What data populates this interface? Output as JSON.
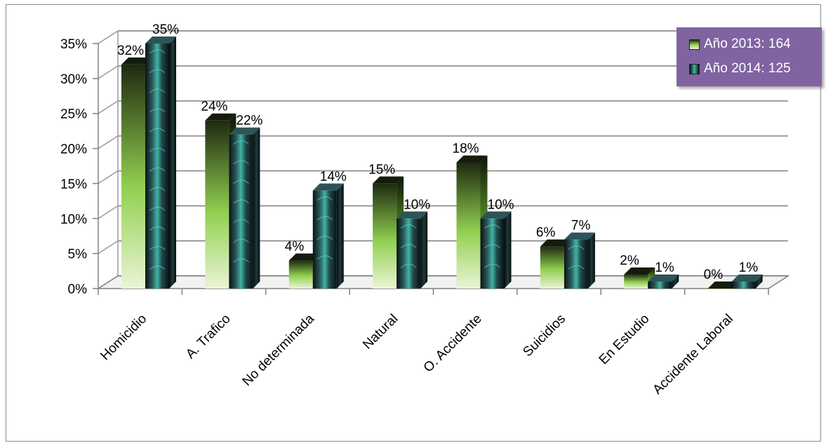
{
  "chart_data": {
    "type": "bar",
    "title": "",
    "xlabel": "",
    "ylabel": "",
    "categories": [
      "Homicidio",
      "A. Trafico",
      "No determinada",
      "Natural",
      "O. Accidente",
      "Suicidios",
      "En Estudio",
      "Accidente Laboral"
    ],
    "series": [
      {
        "name": "Año 2013: 164",
        "values": [
          32,
          24,
          4,
          15,
          18,
          6,
          2,
          0
        ],
        "labels": [
          "32%",
          "24%",
          "4%",
          "15%",
          "18%",
          "6%",
          "2%",
          "0%"
        ],
        "color": "#92d050"
      },
      {
        "name": "Año 2014: 125",
        "values": [
          35,
          22,
          14,
          10,
          10,
          7,
          1,
          1
        ],
        "labels": [
          "35%",
          "22%",
          "14%",
          "10%",
          "10%",
          "7%",
          "1%",
          "1%"
        ],
        "color": "#1b2a2e"
      }
    ],
    "yticks": [
      "0%",
      "5%",
      "10%",
      "15%",
      "20%",
      "25%",
      "30%",
      "35%"
    ],
    "ylim": [
      0,
      35
    ],
    "grid": true,
    "legend_position": "top-right",
    "legend_background": "#8064a2",
    "three_d": true
  }
}
